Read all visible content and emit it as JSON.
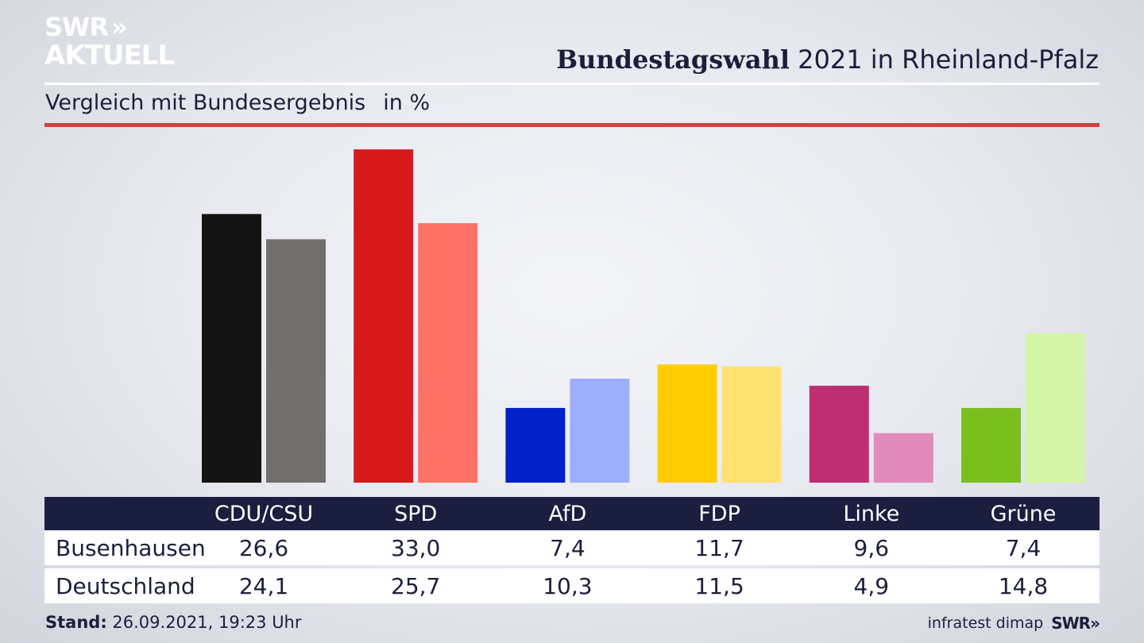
{
  "brand": {
    "logo_line1": "SWR",
    "logo_arrows": "»",
    "logo_line2": "AKTUELL",
    "footer_brand": "SWR»"
  },
  "header": {
    "title_bold": "Bundestagswahl",
    "title_rest": "2021 in Rheinland-Pfalz"
  },
  "subheader": {
    "text": "Vergleich mit Bundesergebnis",
    "unit": "in %"
  },
  "footer": {
    "stand_label": "Stand:",
    "stand_value": "26.09.2021, 19:23 Uhr",
    "source": "infratest dimap"
  },
  "colors": {
    "accent_rule": "#c8463c",
    "table_header": "#1a1f40"
  },
  "chart_data": {
    "type": "bar",
    "categories": [
      "CDU/CSU",
      "SPD",
      "AfD",
      "FDP",
      "Linke",
      "Grüne"
    ],
    "series": [
      {
        "name": "Busenhausen",
        "values": [
          26.6,
          33.0,
          7.4,
          11.7,
          9.6,
          7.4
        ],
        "colors": [
          "#141414",
          "#d7191c",
          "#0021c9",
          "#ffcc00",
          "#be2e73",
          "#7bbf1f"
        ]
      },
      {
        "name": "Deutschland",
        "values": [
          24.1,
          25.7,
          10.3,
          11.5,
          4.9,
          14.8
        ],
        "colors": [
          "#716f6e",
          "#ff7167",
          "#9eaeff",
          "#fde272",
          "#e08bba",
          "#d4f4a8"
        ]
      }
    ],
    "value_labels": {
      "Busenhausen": [
        "26,6",
        "33,0",
        "7,4",
        "11,7",
        "9,6",
        "7,4"
      ],
      "Deutschland": [
        "24,1",
        "25,7",
        "10,3",
        "11,5",
        "4,9",
        "14,8"
      ]
    }
  }
}
